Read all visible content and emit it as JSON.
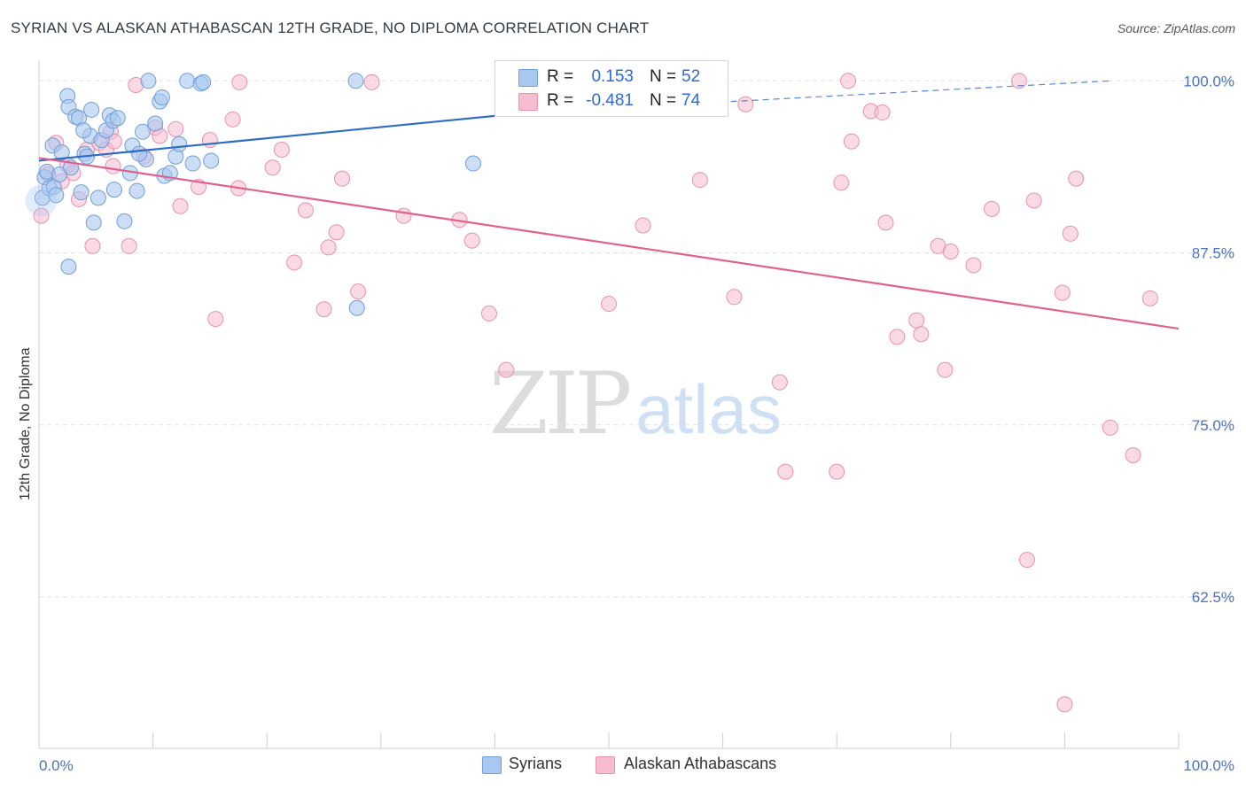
{
  "title": "SYRIAN VS ALASKAN ATHABASCAN 12TH GRADE, NO DIPLOMA CORRELATION CHART",
  "source": "Source: ZipAtlas.com",
  "watermark": {
    "zip": "ZIP",
    "atlas": "atlas"
  },
  "legend": {
    "syrians": {
      "r_label": "R =",
      "r_value": "0.153",
      "n_label": "N =",
      "n_value": "52"
    },
    "alaskan": {
      "r_label": "R =",
      "r_value": "-0.481",
      "n_label": "N =",
      "n_value": "74"
    }
  },
  "bottom_legend": {
    "syrians": "Syrians",
    "alaskan": "Alaskan Athabascans"
  },
  "colors": {
    "syrians_fill": "#a9c8f0",
    "syrians_stroke": "#6e9fd8",
    "syrians_line": "#2d6cc4",
    "alaskan_fill": "#f6bcd0",
    "alaskan_stroke": "#e890b0",
    "alaskan_line": "#e0608e",
    "tick_text": "#4a72c4",
    "grid": "#e3e3e3"
  },
  "chart_data": {
    "type": "scatter",
    "title": "SYRIAN VS ALASKAN ATHABASCAN 12TH GRADE, NO DIPLOMA CORRELATION CHART",
    "xlabel": "",
    "ylabel": "12th Grade, No Diploma",
    "xlim": [
      0,
      100
    ],
    "ylim": [
      51.5,
      101.5
    ],
    "x_tick_labels": [
      "0.0%",
      "100.0%"
    ],
    "y_ticks": [
      62.5,
      75.0,
      87.5,
      100.0
    ],
    "y_tick_labels": [
      "62.5%",
      "75.0%",
      "87.5%",
      "100.0%"
    ],
    "grid": "horizontal dashed",
    "series": [
      {
        "name": "Syrians",
        "points": [
          [
            0.3,
            91.5
          ],
          [
            0.5,
            93.0
          ],
          [
            0.7,
            93.4
          ],
          [
            0.9,
            92.2
          ],
          [
            1.2,
            95.3
          ],
          [
            1.3,
            92.3
          ],
          [
            1.5,
            91.7
          ],
          [
            1.8,
            93.2
          ],
          [
            2.0,
            94.8
          ],
          [
            2.5,
            98.9
          ],
          [
            2.6,
            98.1
          ],
          [
            2.8,
            93.7
          ],
          [
            3.2,
            97.4
          ],
          [
            3.5,
            97.3
          ],
          [
            3.7,
            91.9
          ],
          [
            4.0,
            94.7
          ],
          [
            4.2,
            94.5
          ],
          [
            4.5,
            96.0
          ],
          [
            4.6,
            97.9
          ],
          [
            4.8,
            89.7
          ],
          [
            5.2,
            91.5
          ],
          [
            5.5,
            95.7
          ],
          [
            5.9,
            96.4
          ],
          [
            6.2,
            97.5
          ],
          [
            6.5,
            97.1
          ],
          [
            6.6,
            92.1
          ],
          [
            6.9,
            97.3
          ],
          [
            7.5,
            89.8
          ],
          [
            8.0,
            93.3
          ],
          [
            8.2,
            95.3
          ],
          [
            8.6,
            92.0
          ],
          [
            9.1,
            96.3
          ],
          [
            9.4,
            94.3
          ],
          [
            9.6,
            100.0
          ],
          [
            10.2,
            96.9
          ],
          [
            10.6,
            98.5
          ],
          [
            10.8,
            98.8
          ],
          [
            11.0,
            93.1
          ],
          [
            11.5,
            93.3
          ],
          [
            12.0,
            94.5
          ],
          [
            12.3,
            95.4
          ],
          [
            13.0,
            100.0
          ],
          [
            13.5,
            94.0
          ],
          [
            14.2,
            99.8
          ],
          [
            14.4,
            99.9
          ],
          [
            15.1,
            94.2
          ],
          [
            27.8,
            100.0
          ],
          [
            27.9,
            83.5
          ],
          [
            38.1,
            94.0
          ],
          [
            3.9,
            96.4
          ],
          [
            8.8,
            94.7
          ],
          [
            2.6,
            86.5
          ]
        ]
      },
      {
        "name": "Alaskan Athabascans",
        "points": [
          [
            0.2,
            90.2
          ],
          [
            0.8,
            93.2
          ],
          [
            1.5,
            95.5
          ],
          [
            2.0,
            92.7
          ],
          [
            2.5,
            93.9
          ],
          [
            3.5,
            91.4
          ],
          [
            4.2,
            95.0
          ],
          [
            4.7,
            88.0
          ],
          [
            5.3,
            95.5
          ],
          [
            5.9,
            95.0
          ],
          [
            6.3,
            96.3
          ],
          [
            6.6,
            95.6
          ],
          [
            7.9,
            88.0
          ],
          [
            8.5,
            99.7
          ],
          [
            9.2,
            94.5
          ],
          [
            10.2,
            96.6
          ],
          [
            10.6,
            96.0
          ],
          [
            12.4,
            90.9
          ],
          [
            14.0,
            92.3
          ],
          [
            15.0,
            95.7
          ],
          [
            15.5,
            82.7
          ],
          [
            17.0,
            97.2
          ],
          [
            17.5,
            92.2
          ],
          [
            17.6,
            99.9
          ],
          [
            20.5,
            93.7
          ],
          [
            21.3,
            95.0
          ],
          [
            22.4,
            86.8
          ],
          [
            23.4,
            90.6
          ],
          [
            25.0,
            83.4
          ],
          [
            25.4,
            87.9
          ],
          [
            26.1,
            89.0
          ],
          [
            26.6,
            92.9
          ],
          [
            28.0,
            84.7
          ],
          [
            29.2,
            99.9
          ],
          [
            32.0,
            90.2
          ],
          [
            36.9,
            89.9
          ],
          [
            38.0,
            88.4
          ],
          [
            39.5,
            83.1
          ],
          [
            41.0,
            79.0
          ],
          [
            50.0,
            83.8
          ],
          [
            53.0,
            89.5
          ],
          [
            58.0,
            92.8
          ],
          [
            61.0,
            84.3
          ],
          [
            62.0,
            98.3
          ],
          [
            65.0,
            78.1
          ],
          [
            65.5,
            71.6
          ],
          [
            70.0,
            71.6
          ],
          [
            70.4,
            92.6
          ],
          [
            71.0,
            100.0
          ],
          [
            71.3,
            95.6
          ],
          [
            73.0,
            97.8
          ],
          [
            74.0,
            97.7
          ],
          [
            74.3,
            89.7
          ],
          [
            75.3,
            81.4
          ],
          [
            77.0,
            82.6
          ],
          [
            77.4,
            81.6
          ],
          [
            78.9,
            88.0
          ],
          [
            79.5,
            79.0
          ],
          [
            80.0,
            87.6
          ],
          [
            82.0,
            86.6
          ],
          [
            83.6,
            90.7
          ],
          [
            86.0,
            100.0
          ],
          [
            86.7,
            65.2
          ],
          [
            87.3,
            91.3
          ],
          [
            89.8,
            84.6
          ],
          [
            90.5,
            88.9
          ],
          [
            91.0,
            92.9
          ],
          [
            90.0,
            54.7
          ],
          [
            94.0,
            74.8
          ],
          [
            96.0,
            72.8
          ],
          [
            97.5,
            84.2
          ],
          [
            6.5,
            93.8
          ],
          [
            12.0,
            96.5
          ],
          [
            3.0,
            93.3
          ]
        ]
      }
    ],
    "trend_lines": [
      {
        "name": "Syrians",
        "from": [
          0,
          94.2
        ],
        "to": [
          43,
          97.7
        ],
        "dashed_extension_to": [
          94,
          100.0
        ]
      },
      {
        "name": "Alaskan Athabascans",
        "from": [
          0,
          94.4
        ],
        "to": [
          100,
          82.0
        ]
      }
    ]
  }
}
